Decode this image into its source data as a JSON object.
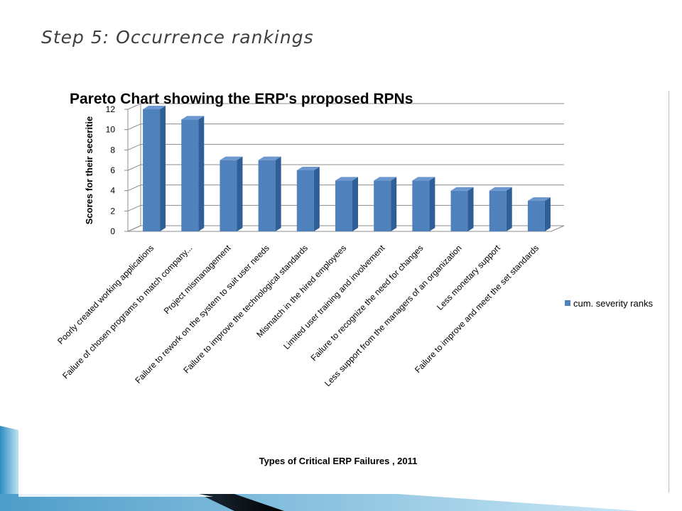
{
  "slide": {
    "title": "Step 5: Occurrence rankings"
  },
  "colors": {
    "bar_front": "#4f81bd",
    "bar_side": "#2f5f96",
    "bar_top": "#6d98cf",
    "grid": "#8c8c8c"
  },
  "chart_data": {
    "type": "bar",
    "title": "Pareto Chart showing the ERP's proposed RPNs",
    "xlabel": "Types of Critical ERP Failures , 2011",
    "ylabel": "Scores for their seceritie",
    "ylim": [
      0,
      12
    ],
    "yticks": [
      0,
      2,
      4,
      6,
      8,
      10,
      12
    ],
    "grid": true,
    "legend_position": "right",
    "categories": [
      "Poorly created working applications",
      "Failure of chosen programs to match company...",
      "Project mismanagement",
      "Failure to rework on the system to suit user needs",
      "Failure to improve the technological standards",
      "Mismatch in the hired employees",
      "Limited user training and involvement",
      "Failure to recognize the need for changes",
      "Less support from the managers of an organization",
      "Less monetary support",
      "Failure to improve and meet the set standards"
    ],
    "series": [
      {
        "name": "cum. severity ranks",
        "values": [
          12,
          11,
          7,
          7,
          6,
          5,
          5,
          5,
          4,
          4,
          3
        ]
      }
    ]
  }
}
